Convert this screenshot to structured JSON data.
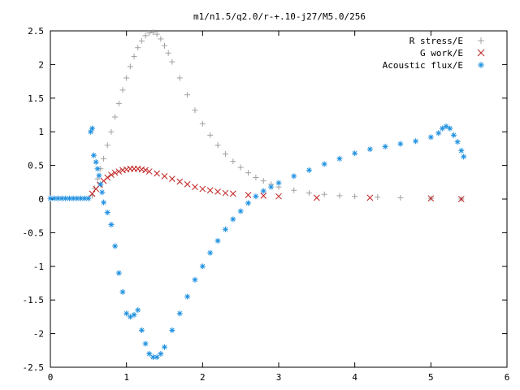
{
  "chart_data": {
    "type": "scatter",
    "title": "m1/n1.5/q2.0/r-+.10-j27/M5.0/256",
    "xlabel": "",
    "ylabel": "",
    "xlim": [
      0,
      6
    ],
    "ylim": [
      -2.5,
      2.5
    ],
    "xticks": [
      "0",
      "1",
      "2",
      "3",
      "4",
      "5",
      "6"
    ],
    "yticks": [
      "2.5",
      "2",
      "1.5",
      "1",
      "0.5",
      "0",
      "-0.5",
      "-1",
      "-1.5",
      "-2",
      "-2.5"
    ],
    "grid": false,
    "legend_position": "top-right",
    "series": [
      {
        "name": "R stress/E",
        "marker": "+",
        "color": "#a0a0a0",
        "points": [
          [
            0.55,
            0.05
          ],
          [
            0.58,
            0.16
          ],
          [
            0.62,
            0.3
          ],
          [
            0.66,
            0.45
          ],
          [
            0.7,
            0.6
          ],
          [
            0.75,
            0.8
          ],
          [
            0.8,
            1.0
          ],
          [
            0.85,
            1.22
          ],
          [
            0.9,
            1.42
          ],
          [
            0.95,
            1.62
          ],
          [
            1.0,
            1.8
          ],
          [
            1.05,
            1.97
          ],
          [
            1.1,
            2.12
          ],
          [
            1.15,
            2.25
          ],
          [
            1.2,
            2.35
          ],
          [
            1.25,
            2.43
          ],
          [
            1.3,
            2.47
          ],
          [
            1.35,
            2.48
          ],
          [
            1.4,
            2.45
          ],
          [
            1.45,
            2.38
          ],
          [
            1.5,
            2.28
          ],
          [
            1.55,
            2.17
          ],
          [
            1.6,
            2.04
          ],
          [
            1.7,
            1.8
          ],
          [
            1.8,
            1.55
          ],
          [
            1.9,
            1.32
          ],
          [
            2.0,
            1.12
          ],
          [
            2.1,
            0.95
          ],
          [
            2.2,
            0.8
          ],
          [
            2.3,
            0.67
          ],
          [
            2.4,
            0.56
          ],
          [
            2.5,
            0.47
          ],
          [
            2.6,
            0.39
          ],
          [
            2.7,
            0.32
          ],
          [
            2.8,
            0.27
          ],
          [
            2.9,
            0.22
          ],
          [
            3.0,
            0.18
          ],
          [
            3.2,
            0.13
          ],
          [
            3.4,
            0.09
          ],
          [
            3.6,
            0.07
          ],
          [
            3.8,
            0.05
          ],
          [
            4.0,
            0.04
          ],
          [
            4.3,
            0.03
          ],
          [
            4.6,
            0.02
          ],
          [
            5.0,
            0.01
          ],
          [
            5.4,
            0.0
          ]
        ]
      },
      {
        "name": "G work/E",
        "marker": "x",
        "color": "#c02020",
        "points": [
          [
            0.55,
            0.08
          ],
          [
            0.6,
            0.15
          ],
          [
            0.65,
            0.21
          ],
          [
            0.7,
            0.27
          ],
          [
            0.75,
            0.32
          ],
          [
            0.8,
            0.36
          ],
          [
            0.85,
            0.39
          ],
          [
            0.9,
            0.41
          ],
          [
            0.95,
            0.43
          ],
          [
            1.0,
            0.44
          ],
          [
            1.05,
            0.45
          ],
          [
            1.1,
            0.45
          ],
          [
            1.15,
            0.45
          ],
          [
            1.2,
            0.44
          ],
          [
            1.25,
            0.43
          ],
          [
            1.3,
            0.41
          ],
          [
            1.4,
            0.38
          ],
          [
            1.5,
            0.34
          ],
          [
            1.6,
            0.3
          ],
          [
            1.7,
            0.26
          ],
          [
            1.8,
            0.22
          ],
          [
            1.9,
            0.18
          ],
          [
            2.0,
            0.15
          ],
          [
            2.1,
            0.13
          ],
          [
            2.2,
            0.11
          ],
          [
            2.3,
            0.09
          ],
          [
            2.4,
            0.08
          ],
          [
            2.6,
            0.06
          ],
          [
            2.8,
            0.05
          ],
          [
            3.0,
            0.04
          ],
          [
            3.5,
            0.02
          ],
          [
            4.2,
            0.02
          ],
          [
            5.0,
            0.01
          ],
          [
            5.4,
            0.0
          ]
        ]
      },
      {
        "name": "Acoustic flux/E",
        "marker": "*",
        "color": "#1e90e0",
        "points": [
          [
            0.0,
            0.01
          ],
          [
            0.05,
            0.01
          ],
          [
            0.1,
            0.01
          ],
          [
            0.15,
            0.01
          ],
          [
            0.2,
            0.01
          ],
          [
            0.25,
            0.01
          ],
          [
            0.3,
            0.01
          ],
          [
            0.35,
            0.01
          ],
          [
            0.4,
            0.01
          ],
          [
            0.45,
            0.01
          ],
          [
            0.5,
            0.01
          ],
          [
            0.53,
            1.0
          ],
          [
            0.55,
            1.05
          ],
          [
            0.57,
            0.65
          ],
          [
            0.6,
            0.55
          ],
          [
            0.62,
            0.45
          ],
          [
            0.64,
            0.35
          ],
          [
            0.66,
            0.22
          ],
          [
            0.68,
            0.1
          ],
          [
            0.7,
            -0.05
          ],
          [
            0.75,
            -0.2
          ],
          [
            0.8,
            -0.38
          ],
          [
            0.85,
            -0.7
          ],
          [
            0.9,
            -1.1
          ],
          [
            0.95,
            -1.38
          ],
          [
            1.0,
            -1.7
          ],
          [
            1.05,
            -1.75
          ],
          [
            1.1,
            -1.72
          ],
          [
            1.15,
            -1.65
          ],
          [
            1.2,
            -1.95
          ],
          [
            1.25,
            -2.15
          ],
          [
            1.3,
            -2.3
          ],
          [
            1.35,
            -2.35
          ],
          [
            1.4,
            -2.35
          ],
          [
            1.45,
            -2.3
          ],
          [
            1.5,
            -2.2
          ],
          [
            1.6,
            -1.95
          ],
          [
            1.7,
            -1.7
          ],
          [
            1.8,
            -1.45
          ],
          [
            1.9,
            -1.2
          ],
          [
            2.0,
            -1.0
          ],
          [
            2.1,
            -0.8
          ],
          [
            2.2,
            -0.62
          ],
          [
            2.3,
            -0.45
          ],
          [
            2.4,
            -0.3
          ],
          [
            2.5,
            -0.18
          ],
          [
            2.6,
            -0.06
          ],
          [
            2.7,
            0.04
          ],
          [
            2.8,
            0.12
          ],
          [
            2.9,
            0.18
          ],
          [
            3.0,
            0.24
          ],
          [
            3.2,
            0.34
          ],
          [
            3.4,
            0.43
          ],
          [
            3.6,
            0.52
          ],
          [
            3.8,
            0.6
          ],
          [
            4.0,
            0.68
          ],
          [
            4.2,
            0.74
          ],
          [
            4.4,
            0.78
          ],
          [
            4.6,
            0.82
          ],
          [
            4.8,
            0.86
          ],
          [
            5.0,
            0.92
          ],
          [
            5.1,
            0.98
          ],
          [
            5.15,
            1.05
          ],
          [
            5.2,
            1.08
          ],
          [
            5.25,
            1.05
          ],
          [
            5.3,
            0.95
          ],
          [
            5.35,
            0.85
          ],
          [
            5.4,
            0.72
          ],
          [
            5.43,
            0.63
          ]
        ]
      }
    ]
  }
}
